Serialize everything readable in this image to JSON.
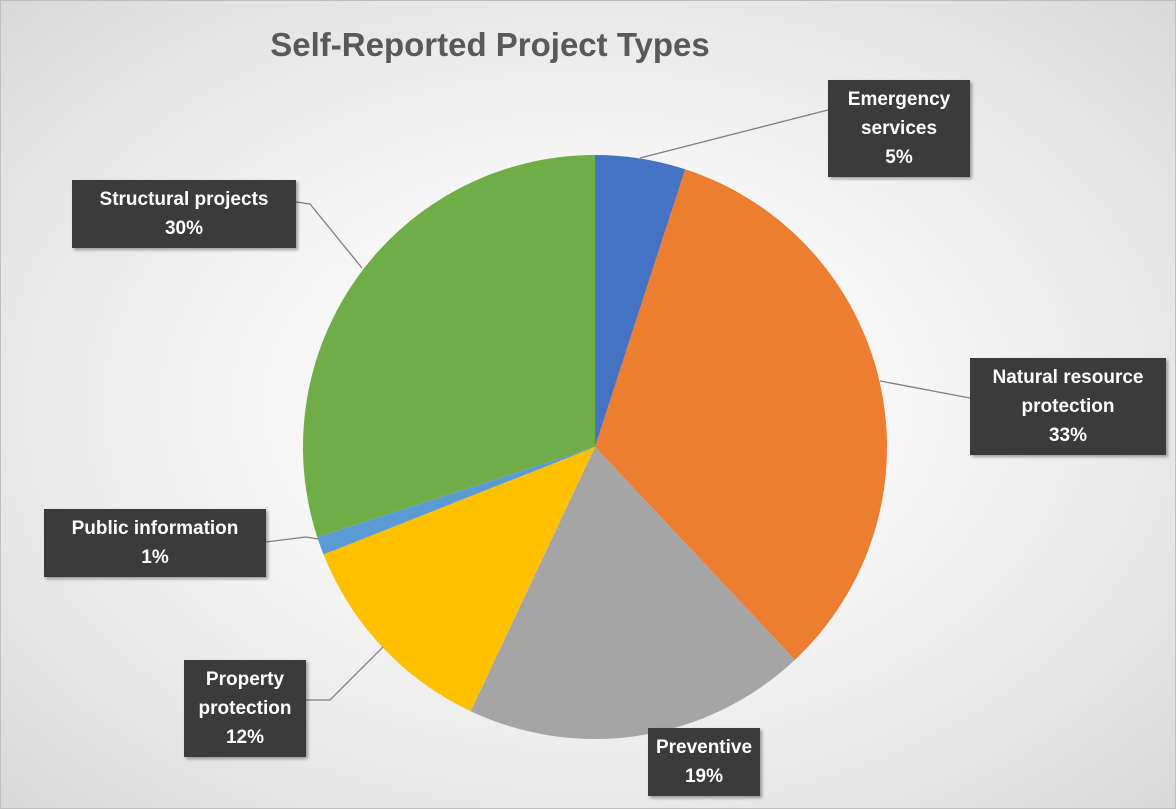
{
  "chart_data": {
    "type": "pie",
    "title": "Self-Reported Project Types",
    "categories": [
      "Emergency services",
      "Natural resource protection",
      "Preventive",
      "Property protection",
      "Public information",
      "Structural projects"
    ],
    "values": [
      5,
      33,
      19,
      12,
      1,
      30
    ],
    "value_labels": [
      "5%",
      "33%",
      "19%",
      "12%",
      "1%",
      "30%"
    ],
    "colors": [
      "#4472c4",
      "#ed7d31",
      "#a5a5a5",
      "#ffc000",
      "#5b9bd5",
      "#70ad47"
    ]
  }
}
